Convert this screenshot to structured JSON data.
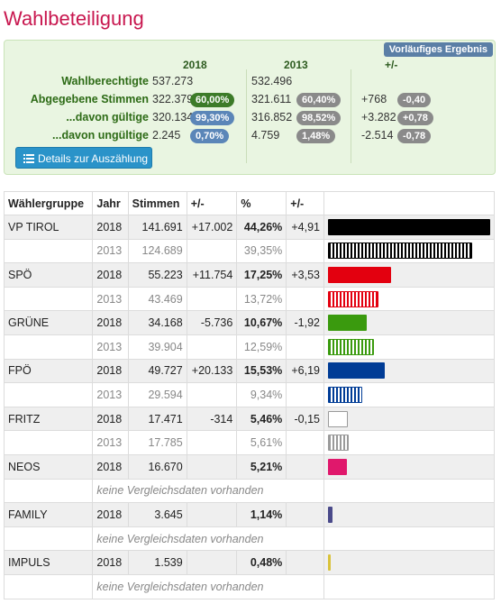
{
  "title": "Wahlbeteiligung",
  "badge": "Vorläufiges Ergebnis",
  "summary": {
    "headers": [
      "2018",
      "2013",
      "+/-"
    ],
    "rows": [
      {
        "label": "Wahlberechtigte",
        "v2018": "537.273",
        "p2018": "",
        "v2013": "532.496",
        "p2013": "",
        "diff": "",
        "pdiff": ""
      },
      {
        "label": "Abgegebene Stimmen",
        "v2018": "322.379",
        "p2018": "60,00%",
        "v2013": "321.611",
        "p2013": "60,40%",
        "diff": "+768",
        "pdiff": "-0,40"
      },
      {
        "label": "...davon gültige",
        "v2018": "320.134",
        "p2018": "99,30%",
        "v2013": "316.852",
        "p2013": "98,52%",
        "diff": "+3.282",
        "pdiff": "+0,78"
      },
      {
        "label": "...davon ungültige",
        "v2018": "2.245",
        "p2018": "0,70%",
        "v2013": "4.759",
        "p2013": "1,48%",
        "diff": "-2.514",
        "pdiff": "-0,78"
      }
    ],
    "details_button": "Details zur Auszählung",
    "details_icon": "list-icon"
  },
  "table": {
    "headers": [
      "Wählergruppe",
      "Jahr",
      "Stimmen",
      "+/-",
      "%",
      "+/-",
      ""
    ],
    "no_data_text": "keine Vergleichsdaten vorhanden",
    "parties": [
      {
        "name": "VP TIROL",
        "color": "#000000",
        "current": {
          "year": "2018",
          "votes": "141.691",
          "dv": "+17.002",
          "pct": "44,26%",
          "dp": "+4,91",
          "share": 44.26
        },
        "previous": {
          "year": "2013",
          "votes": "124.689",
          "pct": "39,35%",
          "share": 39.35
        }
      },
      {
        "name": "SPÖ",
        "color": "#e3000f",
        "current": {
          "year": "2018",
          "votes": "55.223",
          "dv": "+11.754",
          "pct": "17,25%",
          "dp": "+3,53",
          "share": 17.25
        },
        "previous": {
          "year": "2013",
          "votes": "43.469",
          "pct": "13,72%",
          "share": 13.72
        }
      },
      {
        "name": "GRÜNE",
        "color": "#3a9a0e",
        "current": {
          "year": "2018",
          "votes": "34.168",
          "dv": "-5.736",
          "pct": "10,67%",
          "dp": "-1,92",
          "share": 10.67
        },
        "previous": {
          "year": "2013",
          "votes": "39.904",
          "pct": "12,59%",
          "share": 12.59
        }
      },
      {
        "name": "FPÖ",
        "color": "#003c96",
        "current": {
          "year": "2018",
          "votes": "49.727",
          "dv": "+20.133",
          "pct": "15,53%",
          "dp": "+6,19",
          "share": 15.53
        },
        "previous": {
          "year": "2013",
          "votes": "29.594",
          "pct": "9,34%",
          "share": 9.34
        }
      },
      {
        "name": "FRITZ",
        "color": "#9a9a9a",
        "current": {
          "year": "2018",
          "votes": "17.471",
          "dv": "-314",
          "pct": "5,46%",
          "dp": "-0,15",
          "share": 5.46,
          "bar_fill": "#ffffff"
        },
        "previous": {
          "year": "2013",
          "votes": "17.785",
          "pct": "5,61%",
          "share": 5.61
        }
      },
      {
        "name": "NEOS",
        "color": "#e0186c",
        "current": {
          "year": "2018",
          "votes": "16.670",
          "dv": "",
          "pct": "5,21%",
          "dp": "",
          "share": 5.21
        },
        "previous": null
      },
      {
        "name": "FAMILY",
        "color": "#4a4a8a",
        "current": {
          "year": "2018",
          "votes": "3.645",
          "dv": "",
          "pct": "1,14%",
          "dp": "",
          "share": 1.14
        },
        "previous": null
      },
      {
        "name": "IMPULS",
        "color": "#d9c23a",
        "current": {
          "year": "2018",
          "votes": "1.539",
          "dv": "",
          "pct": "0,48%",
          "dp": "",
          "share": 0.48
        },
        "previous": null
      }
    ]
  }
}
